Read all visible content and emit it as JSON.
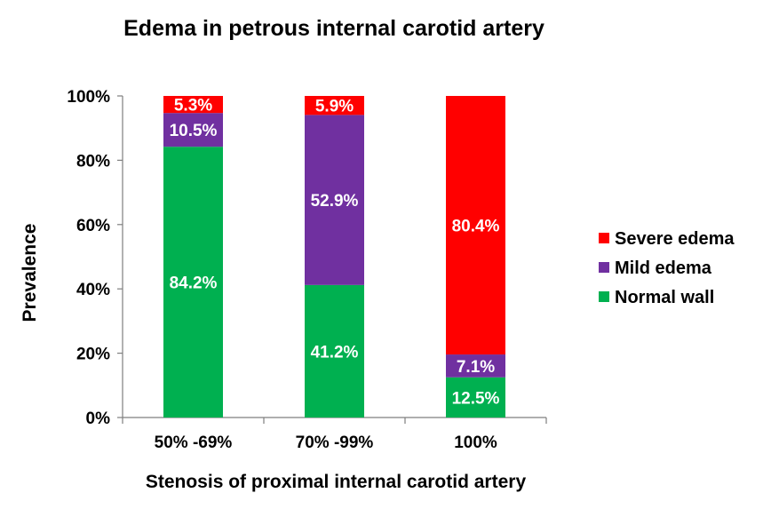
{
  "chart_data": {
    "type": "bar",
    "stacked": true,
    "title": "Edema in petrous internal carotid artery",
    "xlabel": "Stenosis of proximal internal carotid artery",
    "ylabel": "Prevalence",
    "ylim": [
      0,
      100
    ],
    "yticks": [
      "0%",
      "20%",
      "40%",
      "60%",
      "80%",
      "100%"
    ],
    "categories": [
      "50% -69%",
      "70% -99%",
      "100%"
    ],
    "series": [
      {
        "name": "Normal wall",
        "color": "#00b050",
        "values": [
          84.2,
          41.2,
          12.5
        ],
        "labels": [
          "84.2%",
          "41.2%",
          "12.5%"
        ]
      },
      {
        "name": "Mild edema",
        "color": "#7030a0",
        "values": [
          10.5,
          52.9,
          7.1
        ],
        "labels": [
          "10.5%",
          "52.9%",
          "7.1%"
        ]
      },
      {
        "name": "Severe edema",
        "color": "#ff0000",
        "values": [
          5.3,
          5.9,
          80.4
        ],
        "labels": [
          "5.3%",
          "5.9%",
          "80.4%"
        ]
      }
    ],
    "legend": {
      "position": "right",
      "order": [
        "Severe edema",
        "Mild edema",
        "Normal wall"
      ]
    }
  }
}
